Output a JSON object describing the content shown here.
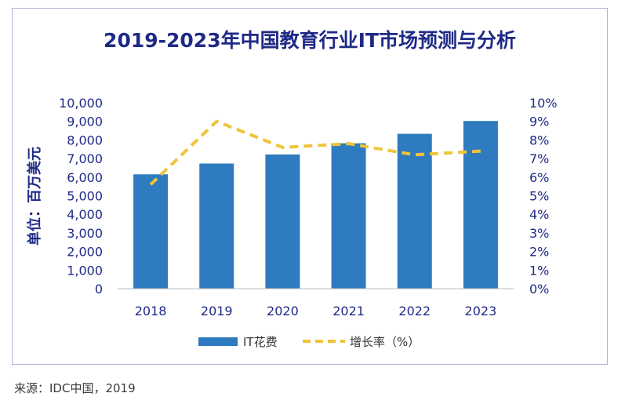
{
  "chart_data": {
    "type": "bar+line",
    "title": "2019-2023年中国教育行业IT市场预测与分析",
    "ylabel": "单位：百万美元",
    "xlabel": "",
    "categories": [
      "2018",
      "2019",
      "2020",
      "2021",
      "2022",
      "2023"
    ],
    "ylim": [
      0,
      10000
    ],
    "y2lim": [
      0,
      10
    ],
    "yticks": [
      "0",
      "1,000",
      "2,000",
      "3,000",
      "4,000",
      "5,000",
      "6,000",
      "7,000",
      "8,000",
      "9,000",
      "10,000"
    ],
    "y2ticks": [
      "0%",
      "1%",
      "2%",
      "3%",
      "4%",
      "5%",
      "6%",
      "7%",
      "8%",
      "9%",
      "10%"
    ],
    "series": [
      {
        "name": "IT花费",
        "kind": "bar",
        "axis": "left",
        "values": [
          6150,
          6730,
          7220,
          7820,
          8330,
          9020
        ]
      },
      {
        "name": "增长率（%）",
        "kind": "line",
        "axis": "right",
        "values": [
          5.6,
          9.0,
          7.6,
          7.8,
          7.2,
          7.4
        ]
      }
    ],
    "legend": [
      "IT花费",
      "增长率（%）"
    ],
    "legend_position": "bottom",
    "grid": false
  },
  "colors": {
    "bar": "#2e7bbf",
    "line": "#f0c43a",
    "axis_text": "#1f2a86",
    "title": "#1f2a86"
  },
  "source": "来源：IDC中国，2019"
}
